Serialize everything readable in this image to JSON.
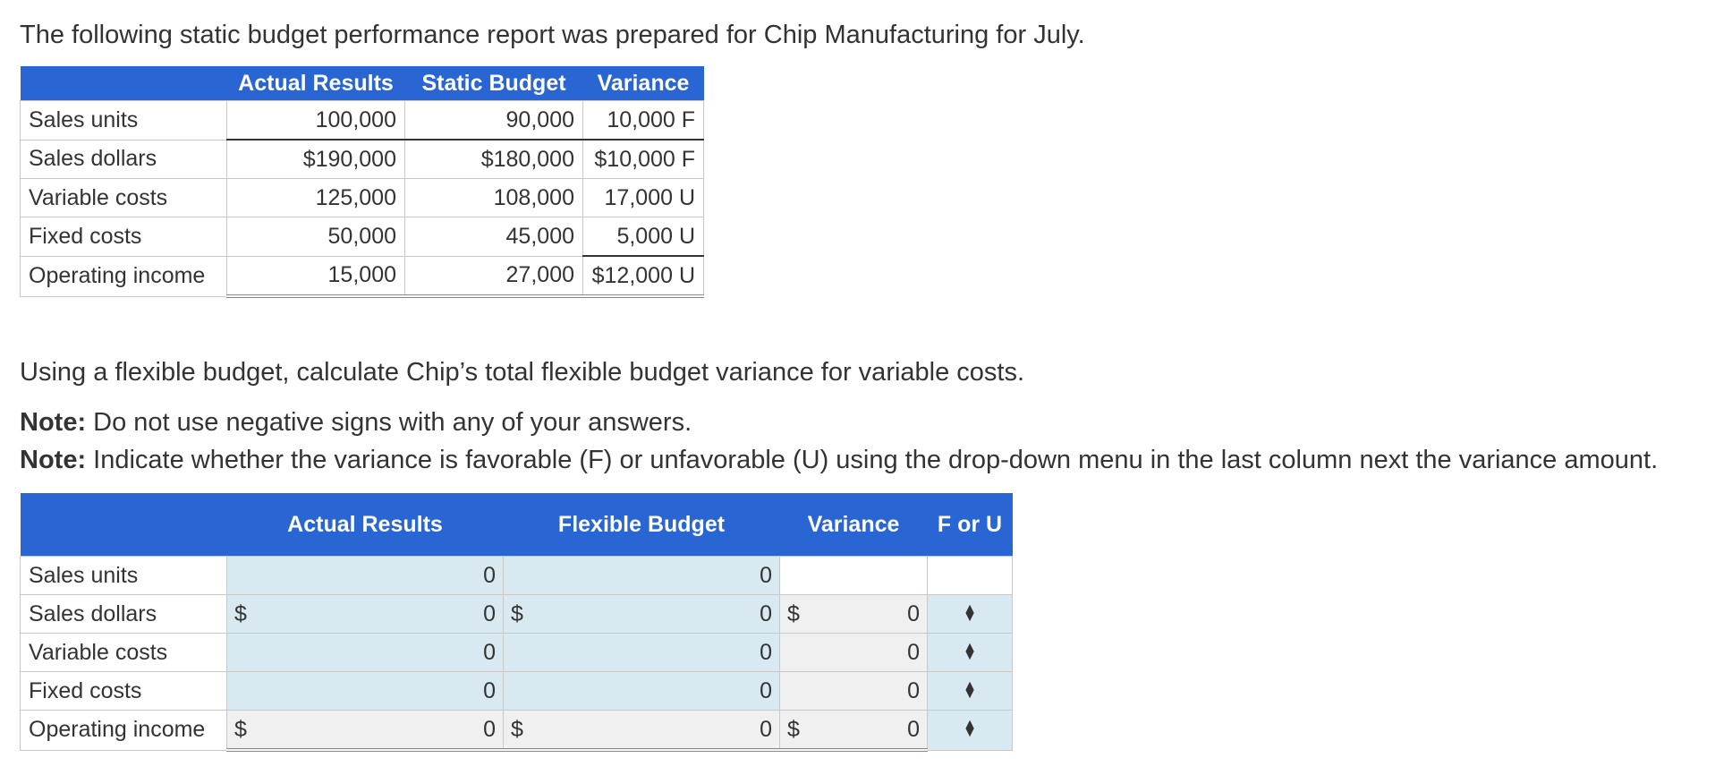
{
  "intro": "The following static budget performance report was prepared for Chip Manufacturing for July.",
  "report": {
    "headers": [
      "",
      "Actual Results",
      "Static Budget",
      "Variance"
    ],
    "rows": [
      {
        "label": "Sales units",
        "actual": "100,000",
        "static": "90,000",
        "variance": "10,000 F"
      },
      {
        "label": "Sales dollars",
        "actual": "$190,000",
        "static": "$180,000",
        "variance": "$10,000 F"
      },
      {
        "label": "Variable costs",
        "actual": "125,000",
        "static": "108,000",
        "variance": "17,000 U"
      },
      {
        "label": "Fixed costs",
        "actual": "50,000",
        "static": "45,000",
        "variance": "5,000 U"
      },
      {
        "label": "Operating income",
        "actual": "15,000",
        "static": "27,000",
        "variance": "$12,000 U"
      }
    ]
  },
  "question": "Using a flexible budget, calculate Chip’s total flexible budget variance for variable costs.",
  "notes": [
    {
      "bold": "Note:",
      "text": " Do not use negative signs with any of your answers."
    },
    {
      "bold": "Note:",
      "text": " Indicate whether the variance is favorable (F) or unfavorable (U) using the drop-down menu in the last column next the variance amount."
    }
  ],
  "answer": {
    "headers": [
      "",
      "Actual Results",
      "Flexible Budget",
      "Variance",
      "F or U"
    ],
    "currency_symbol": "$",
    "rows": [
      {
        "label": "Sales units",
        "actual": "0",
        "flexible": "0",
        "variance": "",
        "dropdown": false,
        "dollar": false
      },
      {
        "label": "Sales dollars",
        "actual": "0",
        "flexible": "0",
        "variance": "0",
        "dropdown": true,
        "dollar": true
      },
      {
        "label": "Variable costs",
        "actual": "0",
        "flexible": "0",
        "variance": "0",
        "dropdown": true,
        "dollar": false
      },
      {
        "label": "Fixed costs",
        "actual": "0",
        "flexible": "0",
        "variance": "0",
        "dropdown": true,
        "dollar": false
      },
      {
        "label": "Operating income",
        "actual": "0",
        "flexible": "0",
        "variance": "0",
        "dropdown": true,
        "dollar": true
      }
    ]
  }
}
